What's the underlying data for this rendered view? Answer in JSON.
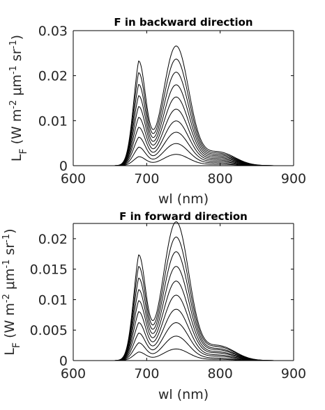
{
  "chart_data": [
    {
      "type": "line",
      "title": "F in backward direction",
      "xlabel": "wl (nm)",
      "ylabel_prefix": "L",
      "ylabel_sub": "F",
      "ylabel_units": "(W m^-2 μm^-1 sr^-1)",
      "xlim": [
        600,
        900
      ],
      "ylim": [
        0,
        0.03
      ],
      "xticks": [
        600,
        700,
        800,
        900
      ],
      "xtick_labels": [
        "600",
        "700",
        "800",
        "900"
      ],
      "yticks": [
        0,
        0.01,
        0.02,
        0.03
      ],
      "ytick_labels": [
        "0",
        "0.01",
        "0.02",
        "0.03"
      ],
      "grid": false,
      "profile": {
        "onset_nm": 640,
        "red_peak_nm": 689,
        "red_peak_width_nm": 9.5,
        "farred_peak_nm": 740,
        "farred_peak_width_nm": 17.5,
        "shoulder_nm": 798,
        "shoulder_width_nm": 22
      },
      "series": [
        {
          "red_peak": 0.0232,
          "farred_peak": 0.0265,
          "shoulder": 0.003
        },
        {
          "red_peak": 0.0206,
          "farred_peak": 0.0236,
          "shoulder": 0.0027
        },
        {
          "red_peak": 0.018,
          "farred_peak": 0.0207,
          "shoulder": 0.0024
        },
        {
          "red_peak": 0.0155,
          "farred_peak": 0.0179,
          "shoulder": 0.0021
        },
        {
          "red_peak": 0.0131,
          "farred_peak": 0.0152,
          "shoulder": 0.0018
        },
        {
          "red_peak": 0.0107,
          "farred_peak": 0.0125,
          "shoulder": 0.0015
        },
        {
          "red_peak": 0.0085,
          "farred_peak": 0.0099,
          "shoulder": 0.0012
        },
        {
          "red_peak": 0.0063,
          "farred_peak": 0.0074,
          "shoulder": 0.0009
        },
        {
          "red_peak": 0.0041,
          "farred_peak": 0.0049,
          "shoulder": 0.0006
        },
        {
          "red_peak": 0.002,
          "farred_peak": 0.0025,
          "shoulder": 0.0003
        }
      ]
    },
    {
      "type": "line",
      "title": "F in forward direction",
      "xlabel": "wl (nm)",
      "ylabel_prefix": "L",
      "ylabel_sub": "F",
      "ylabel_units": "(W m^-2 μm^-1 sr^-1)",
      "xlim": [
        600,
        900
      ],
      "ylim": [
        0,
        0.0225
      ],
      "xticks": [
        600,
        700,
        800,
        900
      ],
      "xtick_labels": [
        "600",
        "700",
        "800",
        "900"
      ],
      "yticks": [
        0,
        0.005,
        0.01,
        0.015,
        0.02
      ],
      "ytick_labels": [
        "0",
        "0.005",
        "0.01",
        "0.015",
        "0.02"
      ],
      "grid": false,
      "profile": {
        "onset_nm": 640,
        "red_peak_nm": 689,
        "red_peak_width_nm": 9.5,
        "farred_peak_nm": 740,
        "farred_peak_width_nm": 17.5,
        "shoulder_nm": 798,
        "shoulder_width_nm": 22
      },
      "series": [
        {
          "red_peak": 0.0173,
          "farred_peak": 0.0227,
          "shoulder": 0.0024
        },
        {
          "red_peak": 0.0154,
          "farred_peak": 0.0202,
          "shoulder": 0.0022
        },
        {
          "red_peak": 0.0135,
          "farred_peak": 0.0178,
          "shoulder": 0.0019
        },
        {
          "red_peak": 0.0116,
          "farred_peak": 0.0154,
          "shoulder": 0.0017
        },
        {
          "red_peak": 0.0098,
          "farred_peak": 0.013,
          "shoulder": 0.0014
        },
        {
          "red_peak": 0.008,
          "farred_peak": 0.0107,
          "shoulder": 0.0012
        },
        {
          "red_peak": 0.0062,
          "farred_peak": 0.0084,
          "shoulder": 0.0009
        },
        {
          "red_peak": 0.0045,
          "farred_peak": 0.0062,
          "shoulder": 0.0007
        },
        {
          "red_peak": 0.0029,
          "farred_peak": 0.004,
          "shoulder": 0.0004
        },
        {
          "red_peak": 0.0014,
          "farred_peak": 0.0019,
          "shoulder": 0.0002
        }
      ]
    }
  ]
}
